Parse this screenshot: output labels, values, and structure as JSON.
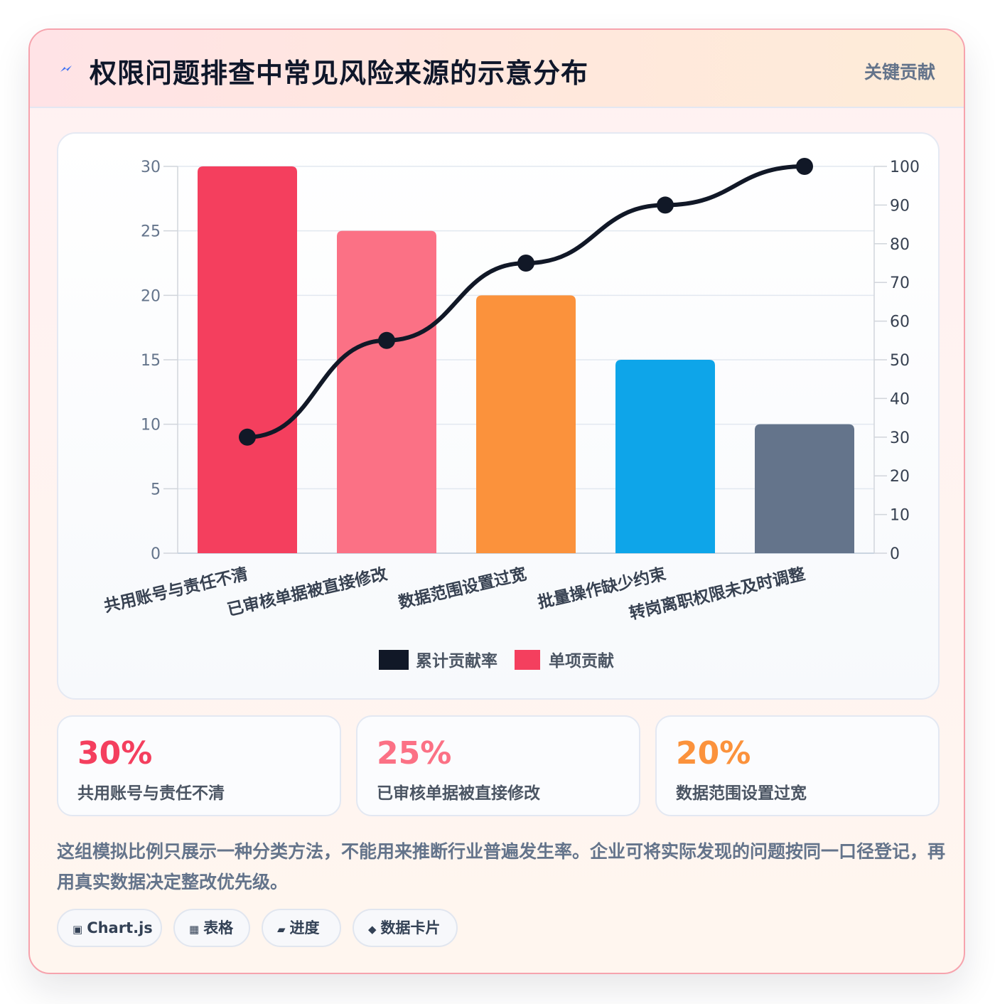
{
  "header": {
    "title": "权限问题排查中常见风险来源的示意分布",
    "badge": "关键贡献",
    "icon": "lightning-icon"
  },
  "colors": {
    "line": "#111827",
    "series_individual": [
      "#f43f5e",
      "#fb7185",
      "#fb923c",
      "#0ea5e9",
      "#64748b"
    ]
  },
  "chart_data": {
    "type": "bar",
    "title": "",
    "categories": [
      "共用账号与责任不清",
      "已审核单据被直接修改",
      "数据范围设置过宽",
      "批量操作缺少约束",
      "转岗离职权限未及时调整"
    ],
    "series": [
      {
        "name": "累计贡献率",
        "type": "line",
        "axis": "right",
        "values": [
          30,
          55,
          75,
          90,
          100
        ]
      },
      {
        "name": "单项贡献",
        "type": "bar",
        "axis": "left",
        "values": [
          30,
          25,
          20,
          15,
          10
        ]
      }
    ],
    "y_left": {
      "min": 0,
      "max": 30,
      "ticks": [
        0,
        5,
        10,
        15,
        20,
        25,
        30
      ]
    },
    "y_right": {
      "min": 0,
      "max": 100,
      "ticks": [
        0,
        10,
        20,
        30,
        40,
        50,
        60,
        70,
        80,
        90,
        100
      ]
    },
    "grid": true,
    "legend_position": "bottom"
  },
  "stats": [
    {
      "value": "30%",
      "label": "共用账号与责任不清",
      "color": "#f43f5e"
    },
    {
      "value": "25%",
      "label": "已审核单据被直接修改",
      "color": "#fb7185"
    },
    {
      "value": "20%",
      "label": "数据范围设置过宽",
      "color": "#fb923c"
    }
  ],
  "note": "这组模拟比例只展示一种分类方法，不能用来推断行业普遍发生率。企业可将实际发现的问题按同一口径登记，再用真实数据决定整改优先级。",
  "tags": [
    {
      "icon": "▣",
      "label": "Chart.js"
    },
    {
      "icon": "▦",
      "label": "表格"
    },
    {
      "icon": "▰",
      "label": "进度"
    },
    {
      "icon": "◆",
      "label": "数据卡片"
    }
  ]
}
